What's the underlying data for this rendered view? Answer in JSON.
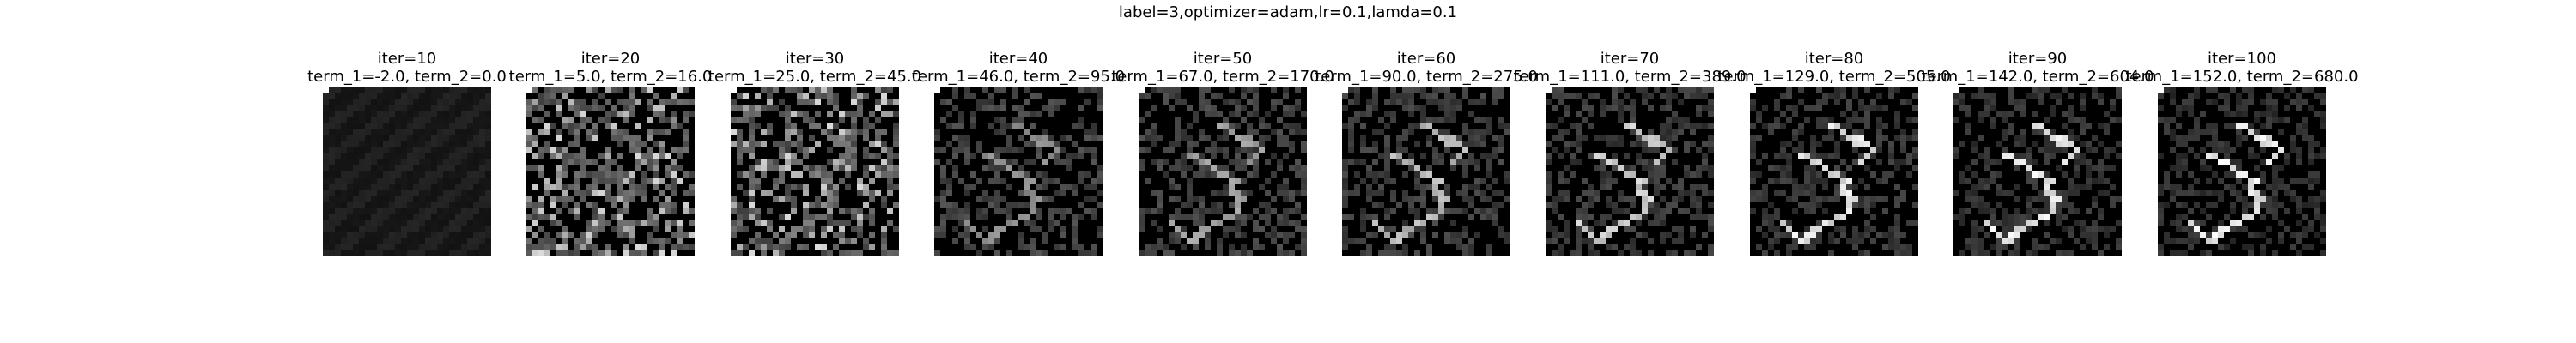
{
  "figure": {
    "suptitle": "label=3,optimizer=adam,lr=0.1,lamda=0.1"
  },
  "panels": [
    {
      "iter_label": "iter=10",
      "terms_label": "term_1=-2.0, term_2=0.0",
      "iter": 10,
      "term_1": -2.0,
      "term_2": 0.0
    },
    {
      "iter_label": "iter=20",
      "terms_label": "term_1=5.0, term_2=16.0",
      "iter": 20,
      "term_1": 5.0,
      "term_2": 16.0
    },
    {
      "iter_label": "iter=30",
      "terms_label": "term_1=25.0, term_2=45.0",
      "iter": 30,
      "term_1": 25.0,
      "term_2": 45.0
    },
    {
      "iter_label": "iter=40",
      "terms_label": "term_1=46.0, term_2=95.0",
      "iter": 40,
      "term_1": 46.0,
      "term_2": 95.0
    },
    {
      "iter_label": "iter=50",
      "terms_label": "term_1=67.0, term_2=170.0",
      "iter": 50,
      "term_1": 67.0,
      "term_2": 170.0
    },
    {
      "iter_label": "iter=60",
      "terms_label": "term_1=90.0, term_2=275.0",
      "iter": 60,
      "term_1": 90.0,
      "term_2": 275.0
    },
    {
      "iter_label": "iter=70",
      "terms_label": "term_1=111.0, term_2=389.0",
      "iter": 70,
      "term_1": 111.0,
      "term_2": 389.0
    },
    {
      "iter_label": "iter=80",
      "terms_label": "term_1=129.0, term_2=505.0",
      "iter": 80,
      "term_1": 129.0,
      "term_2": 505.0
    },
    {
      "iter_label": "iter=90",
      "terms_label": "term_1=142.0, term_2=604.0",
      "iter": 90,
      "term_1": 142.0,
      "term_2": 604.0
    },
    {
      "iter_label": "iter=100",
      "terms_label": "term_1=152.0, term_2=680.0",
      "iter": 100,
      "term_1": 152.0,
      "term_2": 680.0
    }
  ]
}
